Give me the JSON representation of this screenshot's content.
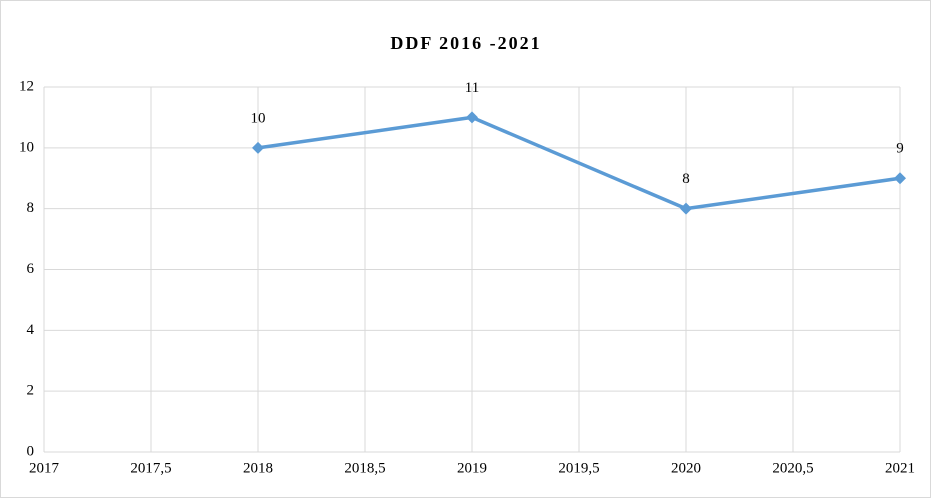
{
  "chart_data": {
    "type": "line",
    "title": "DDF 2016 -2021",
    "x": [
      2018,
      2019,
      2020,
      2021
    ],
    "values": [
      10,
      11,
      8,
      9
    ],
    "color": "#5b9bd5",
    "xlim": [
      2017,
      2021
    ],
    "xticks": [
      2017,
      {
        "value": 2017.5,
        "label": "2017,5"
      },
      2018,
      {
        "value": 2018.5,
        "label": "2018,5"
      },
      2019,
      {
        "value": 2019.5,
        "label": "2019,5"
      },
      2020,
      {
        "value": 2020.5,
        "label": "2020,5"
      },
      2021
    ],
    "ylim": [
      0,
      12
    ],
    "yticks": [
      0,
      2,
      4,
      6,
      8,
      10,
      12
    ],
    "grid": true
  }
}
